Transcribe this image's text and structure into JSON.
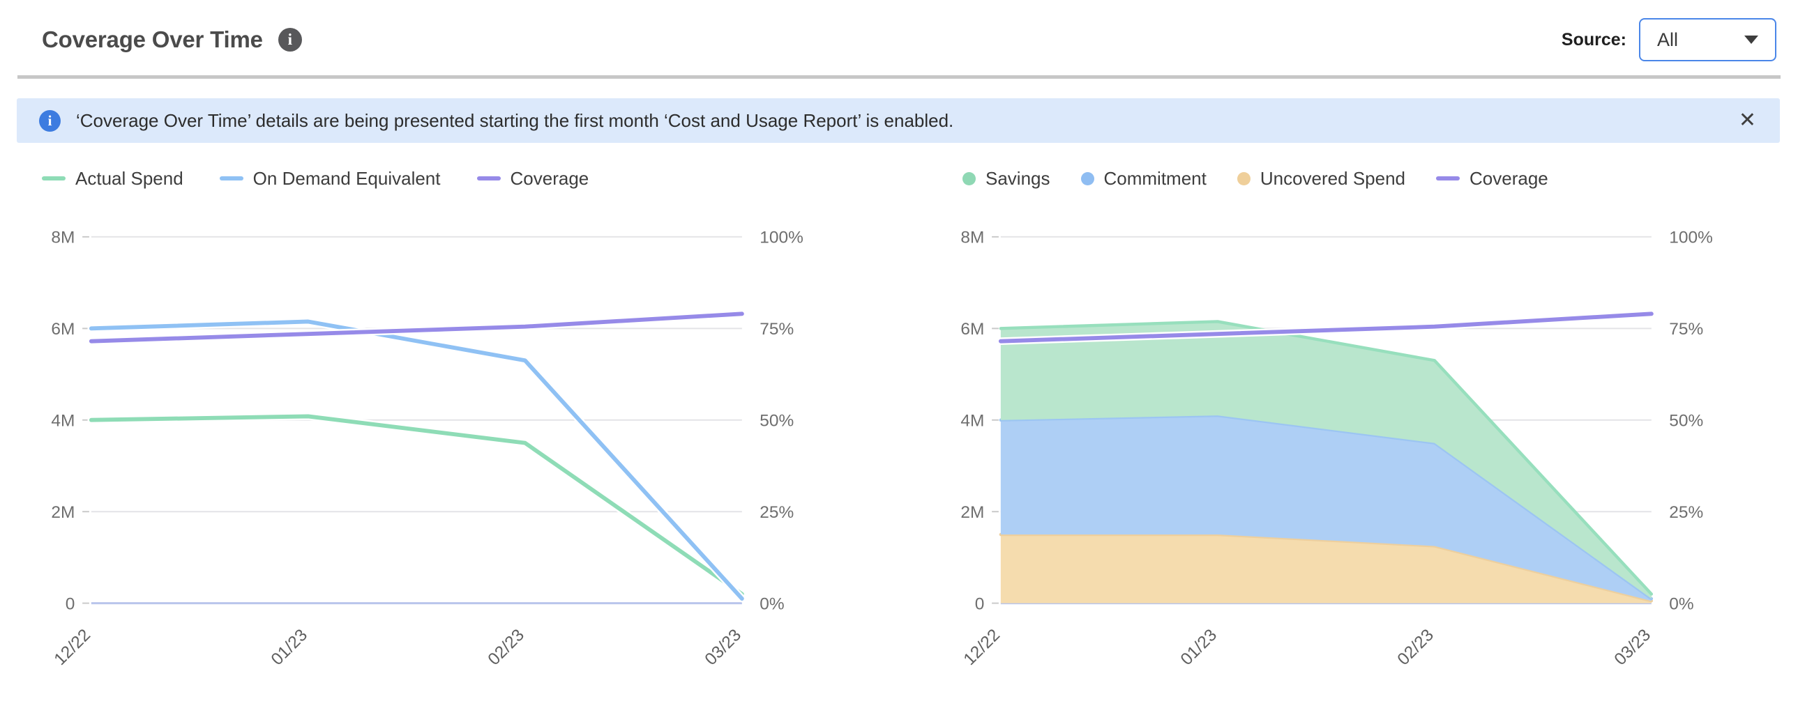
{
  "header": {
    "title": "Coverage Over Time",
    "source_label": "Source:",
    "source_value": "All"
  },
  "icons": {
    "info_glyph": "i",
    "close_glyph": "✕"
  },
  "banner": {
    "message": "‘Coverage Over Time’ details are being presented starting the first month ‘Cost and Usage Report’ is enabled."
  },
  "colors": {
    "grid": "#e4e4e7",
    "baseline": "#b9c5ec",
    "tick_stub": "#c9c9c9",
    "green_line": "#8edcb6",
    "blue_line": "#8fc1f4",
    "purple_line": "#968ae8",
    "green_fill": "#b9e6cd",
    "blue_fill": "#aecff5",
    "orange_fill": "#f5dcae",
    "green_stroke": "#97dfbd",
    "blue_stroke": "#9cc5f2",
    "orange_stroke": "#edcf9e"
  },
  "chart_data": [
    {
      "type": "line",
      "name": "coverage-line-chart",
      "categories": [
        "12/22",
        "01/23",
        "02/23",
        "03/23"
      ],
      "left_axis": {
        "max": 8000000,
        "ticks": [
          0,
          2000000,
          4000000,
          6000000,
          8000000
        ],
        "tick_labels": [
          "0",
          "2M",
          "4M",
          "6M",
          "8M"
        ]
      },
      "right_axis": {
        "max": 100,
        "ticks": [
          0,
          25,
          50,
          75,
          100
        ],
        "tick_labels": [
          "0%",
          "25%",
          "50%",
          "75%",
          "100%"
        ]
      },
      "grid": true,
      "legend_position": "top",
      "series": [
        {
          "name": "Actual Spend",
          "type": "line",
          "axis": "left",
          "color": "#8edcb6",
          "halo": true,
          "values": [
            4000000,
            4080000,
            3500000,
            200000
          ]
        },
        {
          "name": "On Demand Equivalent",
          "type": "line",
          "axis": "left",
          "color": "#8fc1f4",
          "halo": true,
          "values": [
            6000000,
            6150000,
            5300000,
            100000
          ]
        },
        {
          "name": "Coverage",
          "type": "line",
          "axis": "right",
          "color": "#968ae8",
          "halo": true,
          "values": [
            71.5,
            73.5,
            75.5,
            79
          ]
        }
      ],
      "legend": [
        {
          "name": "Actual Spend",
          "swatch": "line",
          "color": "#8edcb6"
        },
        {
          "name": "On Demand Equivalent",
          "swatch": "line",
          "color": "#8fc1f4"
        },
        {
          "name": "Coverage",
          "swatch": "line",
          "color": "#968ae8"
        }
      ]
    },
    {
      "type": "stacked-area",
      "name": "coverage-area-chart",
      "categories": [
        "12/22",
        "01/23",
        "02/23",
        "03/23"
      ],
      "left_axis": {
        "max": 8000000,
        "ticks": [
          0,
          2000000,
          4000000,
          6000000,
          8000000
        ],
        "tick_labels": [
          "0",
          "2M",
          "4M",
          "6M",
          "8M"
        ]
      },
      "right_axis": {
        "max": 100,
        "ticks": [
          0,
          25,
          50,
          75,
          100
        ],
        "tick_labels": [
          "0%",
          "25%",
          "50%",
          "75%",
          "100%"
        ]
      },
      "grid": true,
      "legend_position": "top",
      "series": [
        {
          "name": "Uncovered Spend",
          "type": "area",
          "axis": "left",
          "fill": "#f5dcae",
          "stroke": "#edcf9e",
          "values": [
            1500000,
            1500000,
            1250000,
            50000
          ]
        },
        {
          "name": "Commitment",
          "type": "area",
          "axis": "left",
          "fill": "#aecff5",
          "stroke": "#9cc5f2",
          "values": [
            2500000,
            2600000,
            2250000,
            50000
          ]
        },
        {
          "name": "Savings",
          "type": "area",
          "axis": "left",
          "fill": "#b9e6cd",
          "stroke": "#97dfbd",
          "values": [
            2000000,
            2050000,
            1800000,
            100000
          ]
        },
        {
          "name": "Coverage",
          "type": "line",
          "axis": "right",
          "color": "#968ae8",
          "halo": true,
          "values": [
            71.5,
            73.5,
            75.5,
            79
          ]
        }
      ],
      "legend": [
        {
          "name": "Savings",
          "swatch": "circle",
          "color": "#8fd8b4"
        },
        {
          "name": "Commitment",
          "swatch": "circle",
          "color": "#8fbdf2"
        },
        {
          "name": "Uncovered Spend",
          "swatch": "circle",
          "color": "#efcf9a"
        },
        {
          "name": "Coverage",
          "swatch": "line",
          "color": "#968ae8"
        }
      ]
    }
  ]
}
